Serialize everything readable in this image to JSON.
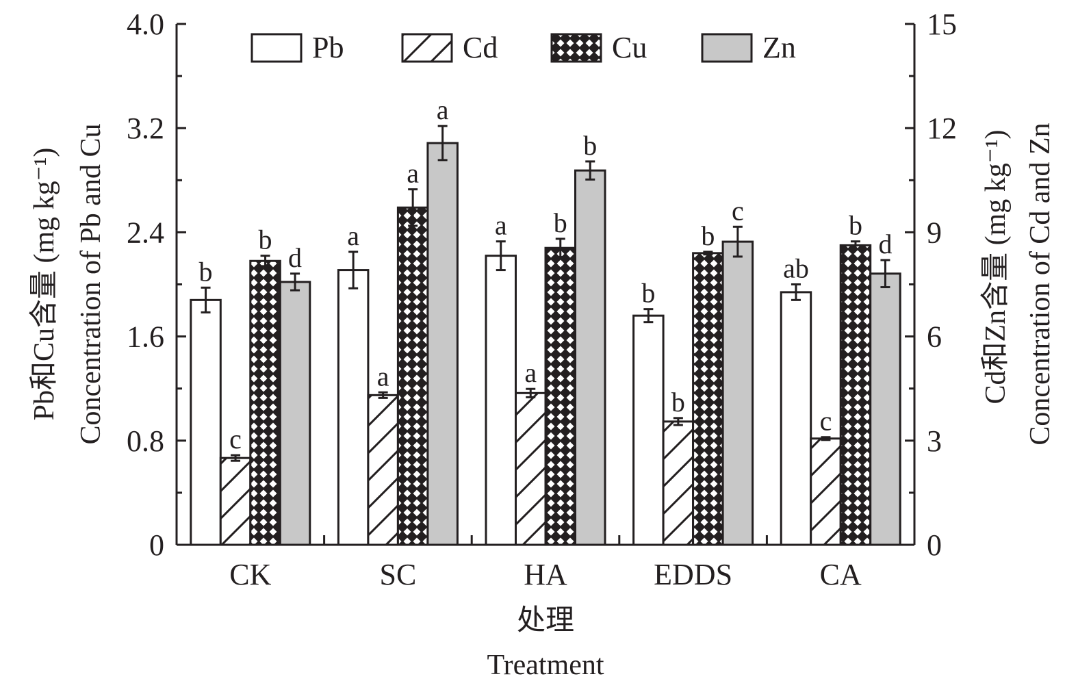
{
  "chart_data": {
    "type": "bar",
    "title": "",
    "categories": [
      "CK",
      "SC",
      "HA",
      "EDDS",
      "CA"
    ],
    "xlabel_cn": "处理",
    "xlabel": "Treatment",
    "ylabel_left_cn": "Pb和Cu含量 (mg kg⁻¹)",
    "ylabel_left": "Concentration of Pb and Cu",
    "ylabel_right_cn": "Cd和Zn含量 (mg kg⁻¹)",
    "ylabel_right": "Concentration of Cd and Zn",
    "ylim_left": [
      0,
      4.0
    ],
    "yticks_left": [
      "0",
      "0.8",
      "1.6",
      "2.4",
      "3.2",
      "4.0"
    ],
    "ylim_right": [
      0,
      15
    ],
    "yticks_right": [
      "0",
      "3",
      "6",
      "9",
      "12",
      "15"
    ],
    "grid": false,
    "legend_position": "top",
    "series": [
      {
        "name": "Pb",
        "axis": "left",
        "fill": "#ffffff",
        "pattern": "none",
        "values": [
          1.88,
          2.11,
          2.22,
          1.76,
          1.94
        ],
        "errors": [
          0.095,
          0.14,
          0.11,
          0.05,
          0.06
        ],
        "labels": [
          "b",
          "a",
          "a",
          "b",
          "ab"
        ]
      },
      {
        "name": "Cd",
        "axis": "right",
        "fill": "#ffffff",
        "pattern": "diagonal",
        "values": [
          2.5,
          4.31,
          4.37,
          3.55,
          3.06
        ],
        "errors": [
          0.08,
          0.08,
          0.12,
          0.1,
          0.04
        ],
        "labels": [
          "c",
          "a",
          "a",
          "b",
          "c"
        ]
      },
      {
        "name": "Cu",
        "axis": "left",
        "fill": "#231f20",
        "pattern": "crosshatch",
        "values": [
          2.18,
          2.59,
          2.28,
          2.24,
          2.3
        ],
        "errors": [
          0.04,
          0.14,
          0.07,
          0.01,
          0.03
        ],
        "labels": [
          "b",
          "a",
          "b",
          "b",
          "b"
        ]
      },
      {
        "name": "Zn",
        "axis": "right",
        "fill": "#c8c8c8",
        "pattern": "none",
        "values": [
          7.57,
          11.57,
          10.78,
          8.73,
          7.81
        ],
        "errors": [
          0.24,
          0.49,
          0.26,
          0.43,
          0.39
        ],
        "labels": [
          "d",
          "a",
          "b",
          "c",
          "d"
        ]
      }
    ]
  }
}
